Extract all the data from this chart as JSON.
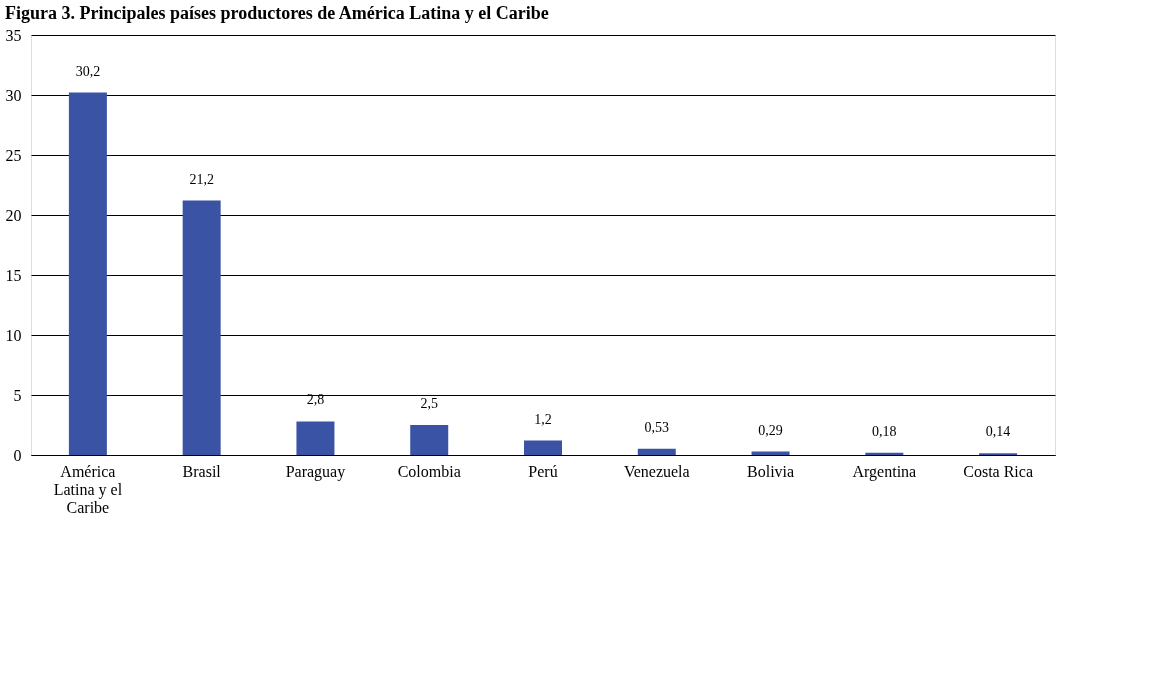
{
  "chart_data": {
    "type": "bar",
    "title": "Figura 3. Principales países productores de América Latina y el Caribe",
    "categories": [
      "América Latina y el Caribe",
      "Brasil",
      "Paraguay",
      "Colombia",
      "Perú",
      "Venezuela",
      "Bolivia",
      "Argentina",
      "Costa Rica"
    ],
    "values": [
      30.2,
      21.2,
      2.8,
      2.5,
      1.2,
      0.53,
      0.29,
      0.18,
      0.14
    ],
    "value_labels": [
      "30,2",
      "21,2",
      "2,8",
      "2,5",
      "1,2",
      "0,53",
      "0,29",
      "0,18",
      "0,14"
    ],
    "color": "#3a53a4",
    "ylim": [
      0,
      35
    ],
    "yticks": [
      0,
      5,
      10,
      15,
      20,
      25,
      30,
      35
    ],
    "grid": "y"
  }
}
